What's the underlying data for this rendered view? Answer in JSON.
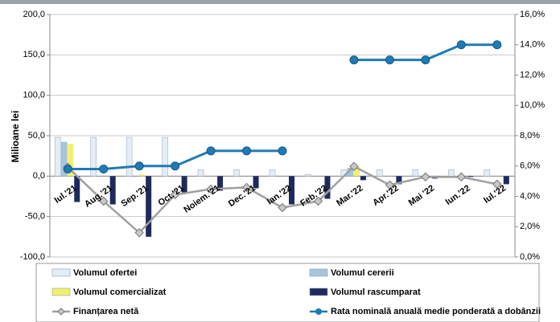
{
  "chart_data": {
    "type": "bar-line",
    "y_axis_label": "Milioane lei",
    "categories": [
      "Iul.'21",
      "Aug.'21",
      "Sep.'21",
      "Oct.'21",
      "Noiem.'21",
      "Dec.'21",
      "Ian.'22",
      "Feb.'22",
      "Mar.'22",
      "Apr.'22",
      "Mai '22",
      "Iun.'22",
      "Iul.'22"
    ],
    "series": [
      {
        "name": "Volumul ofertei",
        "type": "bar",
        "color": "#e4ecf5",
        "values": [
          48,
          48,
          48,
          48,
          8,
          8,
          8,
          2,
          8,
          8,
          8,
          8,
          8
        ]
      },
      {
        "name": "Volumul cererii",
        "type": "bar",
        "color": "#a9c4dc",
        "values": [
          42,
          0,
          0,
          0,
          0,
          0,
          0,
          0,
          10,
          0,
          0,
          0,
          0
        ]
      },
      {
        "name": "Volumul comercializat",
        "type": "bar",
        "color": "#f2f06a",
        "values": [
          40,
          0,
          2,
          0,
          0,
          0,
          0,
          0,
          12,
          0,
          0,
          0,
          0
        ]
      },
      {
        "name": "Volumul rascumparat",
        "type": "bar",
        "color": "#1f2a5c",
        "values": [
          -32,
          -35,
          -75,
          -20,
          -18,
          -15,
          -35,
          -28,
          -5,
          -10,
          -3,
          -1,
          -10
        ]
      },
      {
        "name": "Finanțarea netă",
        "type": "line",
        "color": "#a0a0a0",
        "values": [
          11,
          -31,
          -70,
          -23,
          -16,
          -14,
          -39,
          -31,
          12,
          -11,
          -1,
          -1,
          -10
        ]
      },
      {
        "name": "Rata nominală anuală medie ponderată a dobânzii",
        "type": "line",
        "axis": "y2",
        "color": "#1f7bb5",
        "values": [
          5.8,
          5.8,
          6.0,
          6.0,
          7.0,
          7.0,
          7.0,
          null,
          13.0,
          13.0,
          13.0,
          14.0,
          14.0
        ]
      }
    ],
    "ylim": [
      -100,
      200
    ],
    "yticks": [
      {
        "value": -100,
        "label": "-100,0"
      },
      {
        "value": -50,
        "label": "-50,0"
      },
      {
        "value": 0,
        "label": "0,0"
      },
      {
        "value": 50,
        "label": "50,0"
      },
      {
        "value": 100,
        "label": "100,0"
      },
      {
        "value": 150,
        "label": "150,0"
      },
      {
        "value": 200,
        "label": "200,0"
      }
    ],
    "y2lim": [
      0,
      16
    ],
    "y2ticks": [
      {
        "value": 0,
        "label": "0,0%"
      },
      {
        "value": 2,
        "label": "2,0%"
      },
      {
        "value": 4,
        "label": "4,0%"
      },
      {
        "value": 6,
        "label": "6,0%"
      },
      {
        "value": 8,
        "label": "8,0%"
      },
      {
        "value": 10,
        "label": "10,0%"
      },
      {
        "value": 12,
        "label": "12,0%"
      },
      {
        "value": 14,
        "label": "14,0%"
      },
      {
        "value": 16,
        "label": "16,0%"
      }
    ],
    "grid": true
  }
}
